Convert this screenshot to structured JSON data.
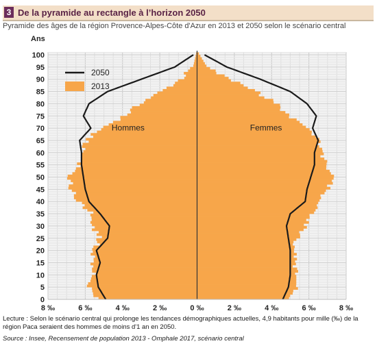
{
  "header": {
    "number": "3",
    "title": "De la pyramide au rectangle à l’horizon 2050",
    "subtitle": "Pyramide des âges de la région Provence-Alpes-Côte d'Azur en 2013 et 2050 selon le scénario central"
  },
  "chart_data": {
    "type": "population-pyramid",
    "ylabel": "Ans",
    "ylim": [
      0,
      100
    ],
    "y_ticks": [
      "0",
      "5",
      "10",
      "15",
      "20",
      "25",
      "30",
      "35",
      "40",
      "45",
      "50",
      "55",
      "60",
      "65",
      "70",
      "75",
      "80",
      "85",
      "90",
      "95",
      "100"
    ],
    "xlim": [
      -8,
      8
    ],
    "x_ticks": [
      "8 ‰",
      "6 ‰",
      "4 ‰",
      "2 ‰",
      "0 ‰",
      "2 ‰",
      "4 ‰",
      "6 ‰",
      "8 ‰"
    ],
    "group_labels": {
      "left": "Hommes",
      "right": "Femmes"
    },
    "legend": {
      "placement": "top-left",
      "items": [
        {
          "name": "2050",
          "style": "line",
          "color": "#1a1a1a"
        },
        {
          "name": "2013",
          "style": "fill",
          "color": "#f7a64a"
        }
      ]
    },
    "ages": [
      0,
      5,
      10,
      15,
      20,
      25,
      30,
      35,
      40,
      45,
      50,
      55,
      60,
      65,
      70,
      75,
      80,
      85,
      90,
      95,
      100
    ],
    "series": [
      {
        "name": "2013",
        "group": "Hommes",
        "values": [
          5.4,
          5.8,
          5.6,
          5.6,
          5.5,
          5.2,
          5.7,
          5.7,
          6.4,
          6.8,
          6.8,
          6.3,
          6.1,
          5.9,
          5.0,
          3.8,
          3.0,
          1.8,
          0.8,
          0.2,
          0.05
        ]
      },
      {
        "name": "2013",
        "group": "Femmes",
        "values": [
          5.1,
          5.3,
          5.3,
          5.2,
          5.2,
          5.4,
          5.9,
          6.2,
          6.6,
          7.0,
          7.3,
          6.9,
          6.6,
          6.5,
          5.8,
          4.8,
          4.2,
          3.0,
          1.6,
          0.5,
          0.1
        ]
      },
      {
        "name": "2050",
        "group": "Hommes",
        "values": [
          4.9,
          5.3,
          5.4,
          5.2,
          5.4,
          4.8,
          4.7,
          5.2,
          5.8,
          6.0,
          6.1,
          6.2,
          6.2,
          6.3,
          5.7,
          6.1,
          5.8,
          4.8,
          3.0,
          1.2,
          0.2
        ]
      },
      {
        "name": "2050",
        "group": "Femmes",
        "values": [
          4.6,
          4.9,
          5.0,
          5.0,
          5.0,
          4.9,
          4.8,
          5.0,
          5.8,
          5.9,
          6.1,
          6.3,
          6.3,
          6.5,
          6.2,
          6.4,
          5.9,
          5.0,
          3.4,
          1.6,
          0.4
        ]
      }
    ]
  },
  "footer": {
    "note": "Lecture : Selon le scénario central qui prolonge les tendances démographiques actuelles, 4,9 habitants pour mille (‰) de la région Paca seraient des hommes de moins d'1 an en 2050.",
    "source": "Source : Insee,  Recensement de population 2013 - Omphale 2017, scénario central"
  }
}
